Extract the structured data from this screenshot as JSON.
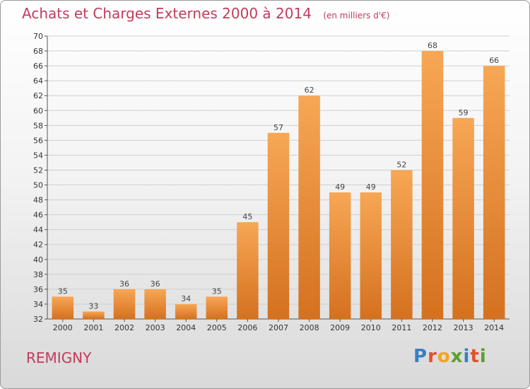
{
  "header": {
    "title": "Achats et Charges Externes 2000 à 2014",
    "subtitle": "(en milliers d'€)"
  },
  "footer": {
    "commune": "REMIGNY",
    "logo": "Proxiti"
  },
  "colors": {
    "bar_top": "#f7a755",
    "bar_bottom": "#d4711f",
    "title": "#c03c5c"
  },
  "chart_data": {
    "type": "bar",
    "title": "Achats et Charges Externes 2000 à 2014",
    "subtitle": "(en milliers d'€)",
    "categories": [
      "2000",
      "2001",
      "2002",
      "2003",
      "2004",
      "2005",
      "2006",
      "2007",
      "2008",
      "2009",
      "2010",
      "2011",
      "2012",
      "2013",
      "2014"
    ],
    "values": [
      35,
      33,
      36,
      36,
      34,
      35,
      45,
      57,
      62,
      49,
      49,
      52,
      68,
      59,
      66
    ],
    "ylim": [
      32,
      70
    ],
    "yticks": [
      32,
      34,
      36,
      38,
      40,
      42,
      44,
      46,
      48,
      50,
      52,
      54,
      56,
      58,
      60,
      62,
      64,
      66,
      68,
      70
    ],
    "grid": true,
    "data_labels": true
  }
}
